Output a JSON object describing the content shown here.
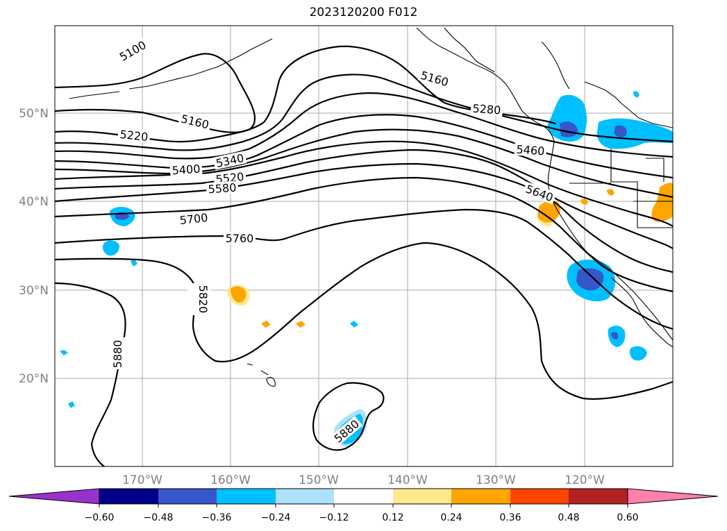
{
  "title": "2023120200 F012",
  "map": {
    "lon_labels": [
      "170°W",
      "160°W",
      "150°W",
      "140°W",
      "130°W",
      "120°W"
    ],
    "lat_labels": [
      "50°N",
      "40°N",
      "30°N",
      "20°N"
    ],
    "contour_labels": [
      "5100",
      "5160",
      "5220",
      "5160",
      "5280",
      "5340",
      "5400",
      "5460",
      "5520",
      "5580",
      "5640",
      "5700",
      "5760",
      "5820",
      "5880",
      "5880"
    ]
  },
  "colorbar": {
    "tick_labels": [
      "−0.60",
      "−0.48",
      "−0.36",
      "−0.24",
      "−0.12",
      "0.12",
      "0.24",
      "0.36",
      "0.48",
      "0.60"
    ],
    "colors": [
      "#9932cc",
      "#00008b",
      "#3657c9",
      "#00bfff",
      "#aee1fb",
      "#ffffff",
      "#ffe98f",
      "#ffa500",
      "#ff4500",
      "#b22222",
      "#ff80a8"
    ]
  }
}
